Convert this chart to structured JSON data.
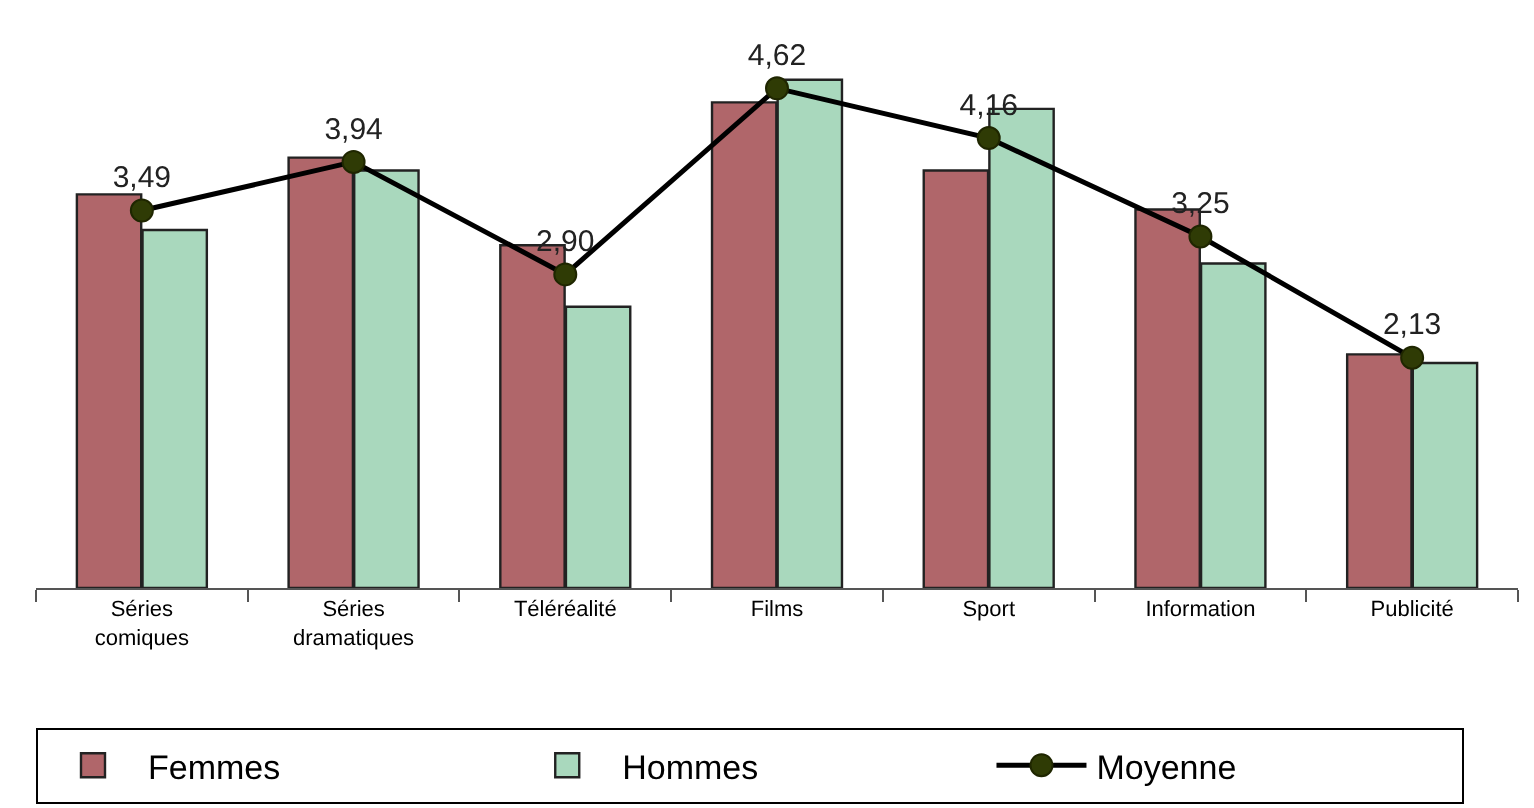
{
  "chart_data": {
    "type": "bar",
    "categories": [
      "Séries comiques",
      "Séries dramatiques",
      "Téléréalité",
      "Films",
      "Sport",
      "Information",
      "Publicité"
    ],
    "series": [
      {
        "name": "Femmes",
        "color": "#b0666a",
        "values": [
          3.64,
          3.98,
          3.17,
          4.49,
          3.86,
          3.5,
          2.16
        ]
      },
      {
        "name": "Hommes",
        "color": "#a9d8bd",
        "values": [
          3.31,
          3.86,
          2.6,
          4.7,
          4.43,
          3.0,
          2.08
        ]
      },
      {
        "name": "Moyenne",
        "type": "line",
        "color": "#2f3b05",
        "marker": "circle",
        "values": [
          3.49,
          3.94,
          2.9,
          4.62,
          4.16,
          3.25,
          2.13
        ],
        "value_labels": [
          "3,49",
          "3,94",
          "2,90",
          "4,62",
          "4,16",
          "3,25",
          "2,13"
        ]
      }
    ],
    "ylim": [
      0,
      5.4
    ],
    "tick_labels": "x",
    "legend": "bottom"
  }
}
